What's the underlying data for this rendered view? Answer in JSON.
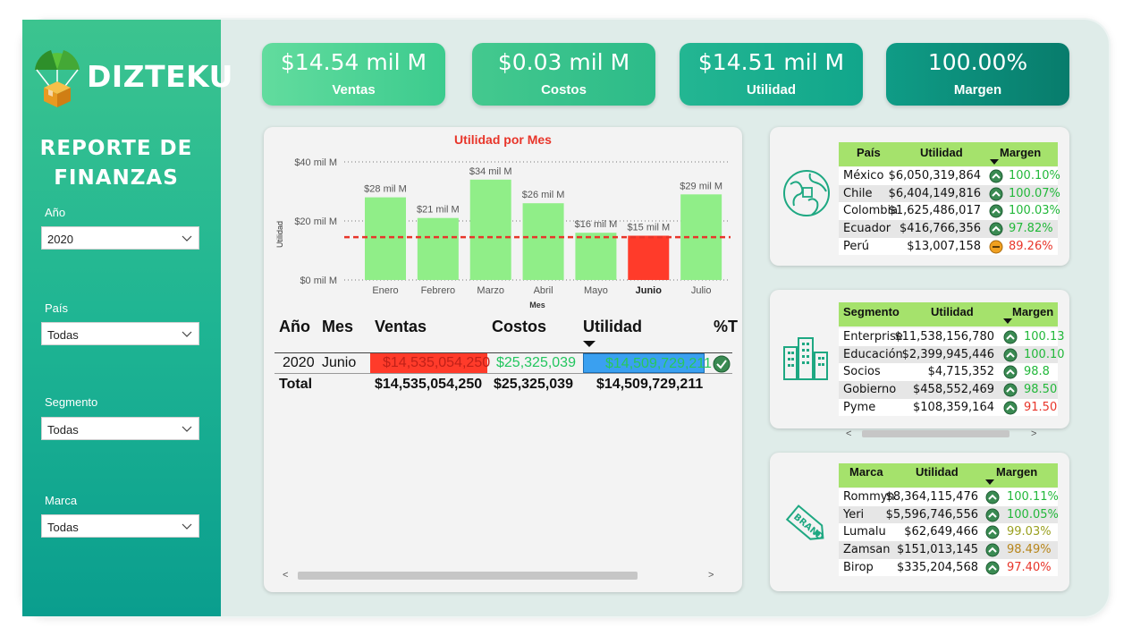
{
  "brand": {
    "name": "DIZTEKU"
  },
  "sidebar": {
    "title_line1": "REPORTE DE",
    "title_line2": "FINANZAS",
    "filters": [
      {
        "label": "Año",
        "value": "2020"
      },
      {
        "label": "País",
        "value": "Todas"
      },
      {
        "label": "Segmento",
        "value": "Todas"
      },
      {
        "label": "Marca",
        "value": "Todas"
      }
    ]
  },
  "kpis": [
    {
      "value": "$14.54 mil M",
      "label": "Ventas"
    },
    {
      "value": "$0.03 mil M",
      "label": "Costos"
    },
    {
      "value": "$14.51 mil M",
      "label": "Utilidad"
    },
    {
      "value": "100.00%",
      "label": "Margen"
    }
  ],
  "chart_data": {
    "type": "bar",
    "title": "Utilidad por Mes",
    "xlabel": "Mes",
    "ylabel": "Utilidad",
    "categories": [
      "Enero",
      "Febrero",
      "Marzo",
      "Abril",
      "Mayo",
      "Junio",
      "Julio"
    ],
    "values": [
      28,
      21,
      34,
      26,
      16,
      15,
      29
    ],
    "data_labels": [
      "$28 mil M",
      "$21 mil M",
      "$34 mil M",
      "$26 mil M",
      "$16 mil M",
      "$15 mil M",
      "$29 mil M"
    ],
    "highlight_category": "Junio",
    "yticks": [
      "$0 mil M",
      "$20 mil M",
      "$40 mil M"
    ],
    "ytick_values": [
      0,
      20,
      40
    ],
    "ylim": [
      0,
      40
    ],
    "reference_line": 14.5,
    "unit": "mil M",
    "colors": {
      "bar": "#90ee88",
      "highlight": "#ff3b2a",
      "reference": "#e8352a"
    },
    "grid": "dotted horizontal"
  },
  "matrix": {
    "headers": {
      "year": "Año",
      "month": "Mes",
      "sales": "Ventas",
      "costs": "Costos",
      "profit": "Utilidad",
      "pct": "%T"
    },
    "row": {
      "year": "2020",
      "month": "Junio",
      "sales": "$14,535,054,250",
      "costs": "$25,325,039",
      "profit": "$14,509,729,211"
    },
    "total": {
      "label": "Total",
      "sales": "$14,535,054,250",
      "costs": "$25,325,039",
      "profit": "$14,509,729,211"
    },
    "colors": {
      "sales_bg": "#ff3b2a",
      "profit_bg": "#3aa0f0",
      "costs_text": "#22c55e"
    }
  },
  "tables": {
    "country": {
      "headers": [
        "País",
        "Utilidad",
        "Margen"
      ],
      "icon": "globe-icon",
      "rows": [
        {
          "name": "México",
          "profit": "$6,050,319,864",
          "margin": "100.10%",
          "status": "up",
          "color": "#22b83a"
        },
        {
          "name": "Chile",
          "profit": "$6,404,149,816",
          "margin": "100.07%",
          "status": "up",
          "color": "#22b83a"
        },
        {
          "name": "Colombia",
          "profit": "$1,625,486,017",
          "margin": "100.03%",
          "status": "up",
          "color": "#22b83a"
        },
        {
          "name": "Ecuador",
          "profit": "$416,766,356",
          "margin": "97.82%",
          "status": "up",
          "color": "#22b83a"
        },
        {
          "name": "Perú",
          "profit": "$13,007,158",
          "margin": "89.26%",
          "status": "mid",
          "color": "#e8352a"
        }
      ]
    },
    "segment": {
      "headers": [
        "Segmento",
        "Utilidad",
        "Margen"
      ],
      "icon": "buildings-icon",
      "rows": [
        {
          "name": "Enterprise",
          "profit": "$11,538,156,780",
          "margin": "100.13",
          "status": "up",
          "color": "#22b83a"
        },
        {
          "name": "Educación",
          "profit": "$2,399,945,446",
          "margin": "100.10",
          "status": "up",
          "color": "#22b83a"
        },
        {
          "name": "Socios",
          "profit": "$4,715,352",
          "margin": "98.8",
          "status": "up",
          "color": "#22b83a"
        },
        {
          "name": "Gobierno",
          "profit": "$458,552,469",
          "margin": "98.50",
          "status": "up",
          "color": "#22b83a"
        },
        {
          "name": "Pyme",
          "profit": "$108,359,164",
          "margin": "91.50",
          "status": "up",
          "color": "#e8352a"
        }
      ]
    },
    "brand": {
      "headers": [
        "Marca",
        "Utilidad",
        "Margen"
      ],
      "icon": "brand-tag-icon",
      "rows": [
        {
          "name": "Rommyn",
          "profit": "$8,364,115,476",
          "margin": "100.11%",
          "status": "up",
          "color": "#22b83a"
        },
        {
          "name": "Yeri",
          "profit": "$5,596,746,556",
          "margin": "100.05%",
          "status": "up",
          "color": "#22b83a"
        },
        {
          "name": "Lumalu",
          "profit": "$62,649,466",
          "margin": "99.03%",
          "status": "up",
          "color": "#9aa020"
        },
        {
          "name": "Zamsan",
          "profit": "$151,013,145",
          "margin": "98.49%",
          "status": "up",
          "color": "#b8861b"
        },
        {
          "name": "Birop",
          "profit": "$335,204,568",
          "margin": "97.40%",
          "status": "up",
          "color": "#e8352a"
        }
      ]
    }
  },
  "scroll": {
    "left": "<",
    "right": ">"
  }
}
